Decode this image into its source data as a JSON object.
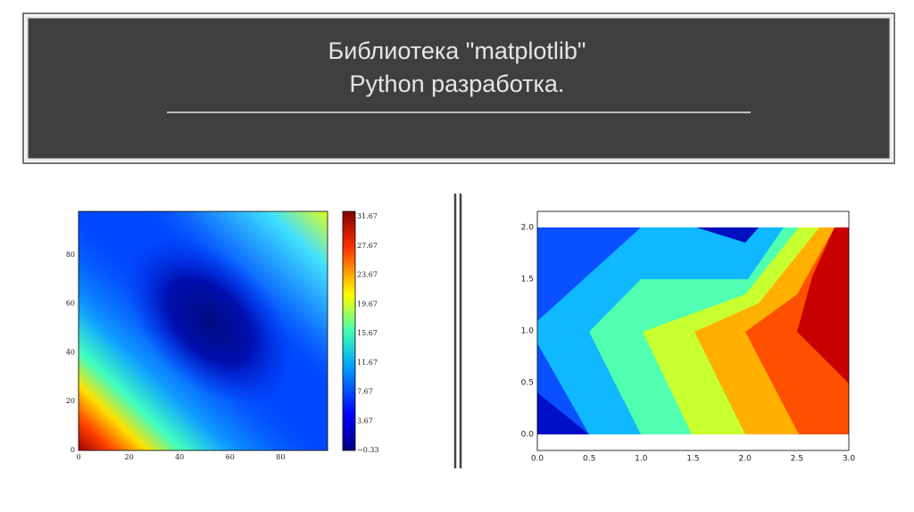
{
  "header": {
    "title_line1": "Библиотека \"matplotlib\"",
    "title_line2": "Python разработка."
  },
  "left_plot": {
    "xticks": [
      "0",
      "20",
      "40",
      "60",
      "80"
    ],
    "yticks": [
      "0",
      "20",
      "40",
      "60",
      "80"
    ],
    "colorbar_ticks": [
      "31.67",
      "27.67",
      "23.67",
      "19.67",
      "15.67",
      "11.67",
      "7.67",
      "3.67",
      "−0.33"
    ]
  },
  "right_plot": {
    "xticks": [
      "0.0",
      "0.5",
      "1.0",
      "1.5",
      "2.0",
      "2.5",
      "3.0"
    ],
    "yticks": [
      "0.0",
      "0.5",
      "1.0",
      "1.5",
      "2.0"
    ]
  }
}
